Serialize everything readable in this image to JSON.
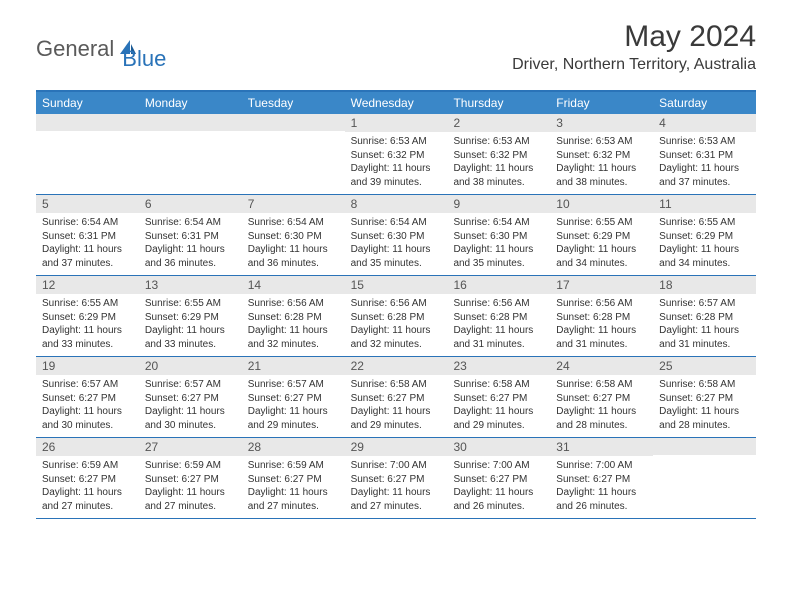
{
  "brand": {
    "general": "General",
    "blue": "Blue"
  },
  "title": "May 2024",
  "location": "Driver, Northern Territory, Australia",
  "colors": {
    "header_bg": "#3a87c8",
    "accent_border": "#2a73b8",
    "daynum_bg": "#e8e8e8",
    "text": "#333333",
    "page_bg": "#ffffff"
  },
  "weekdays": [
    "Sunday",
    "Monday",
    "Tuesday",
    "Wednesday",
    "Thursday",
    "Friday",
    "Saturday"
  ],
  "weeks": [
    [
      {
        "n": "",
        "sr": "",
        "ss": "",
        "dl": ""
      },
      {
        "n": "",
        "sr": "",
        "ss": "",
        "dl": ""
      },
      {
        "n": "",
        "sr": "",
        "ss": "",
        "dl": ""
      },
      {
        "n": "1",
        "sr": "Sunrise: 6:53 AM",
        "ss": "Sunset: 6:32 PM",
        "dl": "Daylight: 11 hours and 39 minutes."
      },
      {
        "n": "2",
        "sr": "Sunrise: 6:53 AM",
        "ss": "Sunset: 6:32 PM",
        "dl": "Daylight: 11 hours and 38 minutes."
      },
      {
        "n": "3",
        "sr": "Sunrise: 6:53 AM",
        "ss": "Sunset: 6:32 PM",
        "dl": "Daylight: 11 hours and 38 minutes."
      },
      {
        "n": "4",
        "sr": "Sunrise: 6:53 AM",
        "ss": "Sunset: 6:31 PM",
        "dl": "Daylight: 11 hours and 37 minutes."
      }
    ],
    [
      {
        "n": "5",
        "sr": "Sunrise: 6:54 AM",
        "ss": "Sunset: 6:31 PM",
        "dl": "Daylight: 11 hours and 37 minutes."
      },
      {
        "n": "6",
        "sr": "Sunrise: 6:54 AM",
        "ss": "Sunset: 6:31 PM",
        "dl": "Daylight: 11 hours and 36 minutes."
      },
      {
        "n": "7",
        "sr": "Sunrise: 6:54 AM",
        "ss": "Sunset: 6:30 PM",
        "dl": "Daylight: 11 hours and 36 minutes."
      },
      {
        "n": "8",
        "sr": "Sunrise: 6:54 AM",
        "ss": "Sunset: 6:30 PM",
        "dl": "Daylight: 11 hours and 35 minutes."
      },
      {
        "n": "9",
        "sr": "Sunrise: 6:54 AM",
        "ss": "Sunset: 6:30 PM",
        "dl": "Daylight: 11 hours and 35 minutes."
      },
      {
        "n": "10",
        "sr": "Sunrise: 6:55 AM",
        "ss": "Sunset: 6:29 PM",
        "dl": "Daylight: 11 hours and 34 minutes."
      },
      {
        "n": "11",
        "sr": "Sunrise: 6:55 AM",
        "ss": "Sunset: 6:29 PM",
        "dl": "Daylight: 11 hours and 34 minutes."
      }
    ],
    [
      {
        "n": "12",
        "sr": "Sunrise: 6:55 AM",
        "ss": "Sunset: 6:29 PM",
        "dl": "Daylight: 11 hours and 33 minutes."
      },
      {
        "n": "13",
        "sr": "Sunrise: 6:55 AM",
        "ss": "Sunset: 6:29 PM",
        "dl": "Daylight: 11 hours and 33 minutes."
      },
      {
        "n": "14",
        "sr": "Sunrise: 6:56 AM",
        "ss": "Sunset: 6:28 PM",
        "dl": "Daylight: 11 hours and 32 minutes."
      },
      {
        "n": "15",
        "sr": "Sunrise: 6:56 AM",
        "ss": "Sunset: 6:28 PM",
        "dl": "Daylight: 11 hours and 32 minutes."
      },
      {
        "n": "16",
        "sr": "Sunrise: 6:56 AM",
        "ss": "Sunset: 6:28 PM",
        "dl": "Daylight: 11 hours and 31 minutes."
      },
      {
        "n": "17",
        "sr": "Sunrise: 6:56 AM",
        "ss": "Sunset: 6:28 PM",
        "dl": "Daylight: 11 hours and 31 minutes."
      },
      {
        "n": "18",
        "sr": "Sunrise: 6:57 AM",
        "ss": "Sunset: 6:28 PM",
        "dl": "Daylight: 11 hours and 31 minutes."
      }
    ],
    [
      {
        "n": "19",
        "sr": "Sunrise: 6:57 AM",
        "ss": "Sunset: 6:27 PM",
        "dl": "Daylight: 11 hours and 30 minutes."
      },
      {
        "n": "20",
        "sr": "Sunrise: 6:57 AM",
        "ss": "Sunset: 6:27 PM",
        "dl": "Daylight: 11 hours and 30 minutes."
      },
      {
        "n": "21",
        "sr": "Sunrise: 6:57 AM",
        "ss": "Sunset: 6:27 PM",
        "dl": "Daylight: 11 hours and 29 minutes."
      },
      {
        "n": "22",
        "sr": "Sunrise: 6:58 AM",
        "ss": "Sunset: 6:27 PM",
        "dl": "Daylight: 11 hours and 29 minutes."
      },
      {
        "n": "23",
        "sr": "Sunrise: 6:58 AM",
        "ss": "Sunset: 6:27 PM",
        "dl": "Daylight: 11 hours and 29 minutes."
      },
      {
        "n": "24",
        "sr": "Sunrise: 6:58 AM",
        "ss": "Sunset: 6:27 PM",
        "dl": "Daylight: 11 hours and 28 minutes."
      },
      {
        "n": "25",
        "sr": "Sunrise: 6:58 AM",
        "ss": "Sunset: 6:27 PM",
        "dl": "Daylight: 11 hours and 28 minutes."
      }
    ],
    [
      {
        "n": "26",
        "sr": "Sunrise: 6:59 AM",
        "ss": "Sunset: 6:27 PM",
        "dl": "Daylight: 11 hours and 27 minutes."
      },
      {
        "n": "27",
        "sr": "Sunrise: 6:59 AM",
        "ss": "Sunset: 6:27 PM",
        "dl": "Daylight: 11 hours and 27 minutes."
      },
      {
        "n": "28",
        "sr": "Sunrise: 6:59 AM",
        "ss": "Sunset: 6:27 PM",
        "dl": "Daylight: 11 hours and 27 minutes."
      },
      {
        "n": "29",
        "sr": "Sunrise: 7:00 AM",
        "ss": "Sunset: 6:27 PM",
        "dl": "Daylight: 11 hours and 27 minutes."
      },
      {
        "n": "30",
        "sr": "Sunrise: 7:00 AM",
        "ss": "Sunset: 6:27 PM",
        "dl": "Daylight: 11 hours and 26 minutes."
      },
      {
        "n": "31",
        "sr": "Sunrise: 7:00 AM",
        "ss": "Sunset: 6:27 PM",
        "dl": "Daylight: 11 hours and 26 minutes."
      },
      {
        "n": "",
        "sr": "",
        "ss": "",
        "dl": ""
      }
    ]
  ]
}
